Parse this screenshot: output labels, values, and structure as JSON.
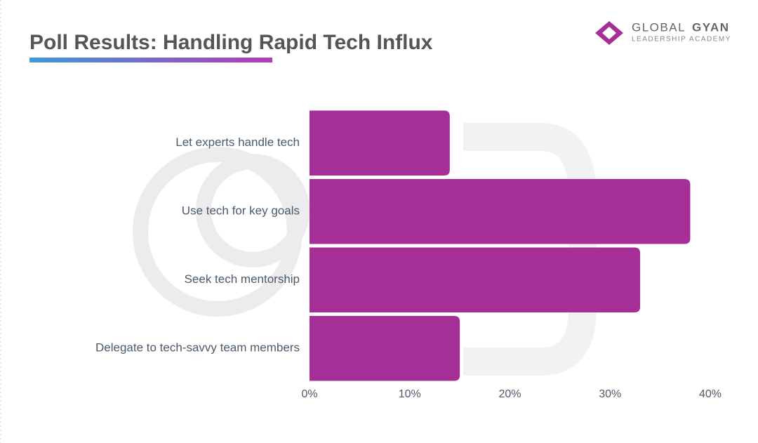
{
  "chart_data": {
    "type": "barh",
    "title": "Poll Results: Handling Rapid Tech Influx",
    "categories": [
      "Let experts handle tech",
      "Use tech for key goals",
      "Seek tech mentorship",
      "Delegate to tech-savvy team members"
    ],
    "values": [
      14,
      38,
      33,
      15
    ],
    "color": "#a62f97",
    "xlim": [
      0,
      40
    ],
    "xticks": [
      {
        "value": 0,
        "label": "0%"
      },
      {
        "value": 10,
        "label": "10%"
      },
      {
        "value": 20,
        "label": "20%"
      },
      {
        "value": 30,
        "label": "30%"
      },
      {
        "value": 40,
        "label": "40%"
      }
    ],
    "grid": false
  },
  "brand": {
    "name_light": "GLOBAL",
    "name_bold": "GYAN",
    "tagline": "LEADERSHIP ACADEMY"
  }
}
